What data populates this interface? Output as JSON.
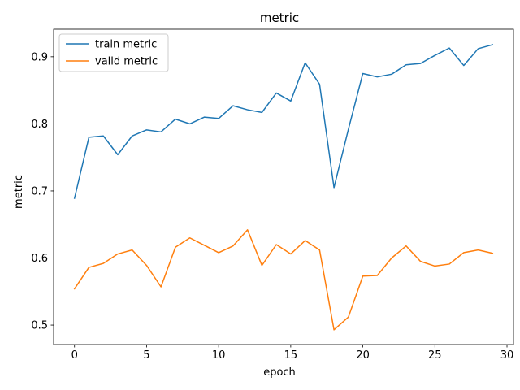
{
  "chart_data": {
    "type": "line",
    "title": "metric",
    "xlabel": "epoch",
    "ylabel": "metric",
    "xlim": [
      -1.45,
      30.45
    ],
    "ylim": [
      0.471,
      0.941
    ],
    "xticks": [
      0,
      5,
      10,
      15,
      20,
      25,
      30
    ],
    "yticks": [
      0.5,
      0.6,
      0.7,
      0.8,
      0.9
    ],
    "ytick_labels": [
      "0.5",
      "0.6",
      "0.7",
      "0.8",
      "0.9"
    ],
    "xtick_labels": [
      "0",
      "5",
      "10",
      "15",
      "20",
      "25",
      "30"
    ],
    "grid": false,
    "legend_position": "upper-left",
    "x": [
      0,
      1,
      2,
      3,
      4,
      5,
      6,
      7,
      8,
      9,
      10,
      11,
      12,
      13,
      14,
      15,
      16,
      17,
      18,
      19,
      20,
      21,
      22,
      23,
      24,
      25,
      26,
      27,
      28,
      29
    ],
    "series": [
      {
        "name": "train metric",
        "color": "#1f77b4",
        "values": [
          0.689,
          0.78,
          0.782,
          0.754,
          0.782,
          0.791,
          0.788,
          0.807,
          0.8,
          0.81,
          0.808,
          0.827,
          0.821,
          0.817,
          0.846,
          0.834,
          0.891,
          0.859,
          0.705,
          0.792,
          0.875,
          0.87,
          0.874,
          0.888,
          0.89,
          0.902,
          0.913,
          0.887,
          0.912,
          0.918
        ]
      },
      {
        "name": "valid metric",
        "color": "#ff7f0e",
        "values": [
          0.554,
          0.586,
          0.592,
          0.606,
          0.612,
          0.589,
          0.557,
          0.616,
          0.63,
          0.619,
          0.608,
          0.618,
          0.642,
          0.589,
          0.62,
          0.606,
          0.626,
          0.612,
          0.493,
          0.512,
          0.573,
          0.574,
          0.6,
          0.618,
          0.595,
          0.588,
          0.591,
          0.608,
          0.612,
          0.607
        ]
      }
    ]
  }
}
